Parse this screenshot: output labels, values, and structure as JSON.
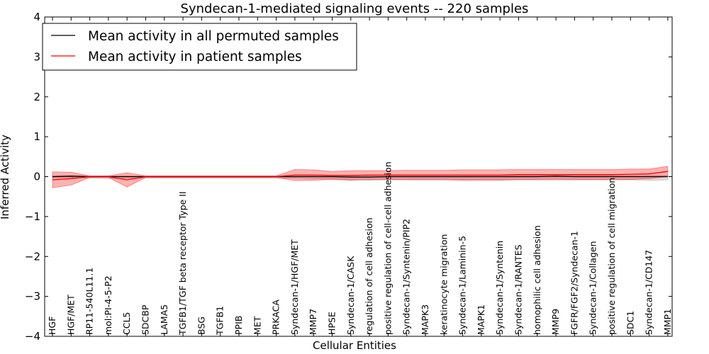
{
  "chart_data": {
    "type": "line",
    "title": "Syndecan-1-mediated signaling events -- 220 samples",
    "xlabel": "Cellular Entities",
    "ylabel": "Inferred Activity",
    "ylim": [
      -4,
      4
    ],
    "yticks": [
      "−4",
      "−3",
      "−2",
      "−1",
      "0",
      "1",
      "2",
      "3",
      "4"
    ],
    "grid": false,
    "legend_position": "top-left",
    "categories": [
      "HGF",
      "HGF/MET",
      "RP11-540L11.1",
      "mol:PI-4-5-P2",
      "CCL5",
      "SDCBP",
      "LAMA5",
      "TGFB1/TGF beta receptor Type II",
      "BSG",
      "TGFB1",
      "PPIB",
      "MET",
      "PRKACA",
      "Syndecan-1/HGF/MET",
      "MMP7",
      "HPSE",
      "Syndecan-1/CASK",
      "regulation of cell adhesion",
      "positive regulation of cell-cell adhesion",
      "Syndecan-1/Syntenin/PIP2",
      "MAPK3",
      "keratinocyte migration",
      "Syndecan-1/Laminin-5",
      "MAPK1",
      "Syndecan-1/Syntenin",
      "Syndecan-1/RANTES",
      "homophilic cell adhesion",
      "MMP9",
      "FGFR/FGF2/Syndecan-1",
      "Syndecan-1/Collagen",
      "positive regulation of cell migration",
      "SDC1",
      "Syndecan-1/CD147",
      "MMP1"
    ],
    "series": [
      {
        "name": "Mean activity in all permuted samples",
        "color": "#000000",
        "values": [
          0.0,
          0.01,
          0.0,
          0.0,
          0.0,
          0.0,
          0.0,
          0.0,
          0.0,
          0.0,
          0.0,
          0.0,
          0.0,
          0.0,
          0.0,
          0.0,
          -0.01,
          -0.01,
          0.0,
          0.0,
          0.0,
          0.0,
          0.0,
          0.0,
          0.0,
          0.0,
          0.0,
          0.01,
          0.0,
          0.0,
          0.0,
          0.0,
          0.0,
          0.0
        ],
        "band_upper": [
          0.02,
          0.03,
          0.02,
          0.02,
          0.02,
          0.02,
          0.02,
          0.02,
          0.02,
          0.02,
          0.02,
          0.02,
          0.02,
          0.03,
          0.03,
          0.03,
          0.03,
          0.03,
          0.03,
          0.03,
          0.03,
          0.03,
          0.03,
          0.03,
          0.03,
          0.03,
          0.03,
          0.04,
          0.03,
          0.03,
          0.03,
          0.03,
          0.03,
          0.03
        ],
        "band_lower": [
          -0.03,
          -0.02,
          -0.04,
          -0.05,
          -0.04,
          -0.04,
          -0.04,
          -0.04,
          -0.04,
          -0.04,
          -0.04,
          -0.04,
          -0.04,
          -0.04,
          -0.05,
          -0.06,
          -0.08,
          -0.09,
          -0.08,
          -0.08,
          -0.08,
          -0.08,
          -0.08,
          -0.07,
          -0.07,
          -0.07,
          -0.07,
          -0.06,
          -0.07,
          -0.07,
          -0.08,
          -0.08,
          -0.09,
          -0.08
        ]
      },
      {
        "name": "Mean activity in patient samples",
        "color": "#ff0000",
        "values": [
          -0.08,
          -0.05,
          0.0,
          0.0,
          -0.08,
          0.0,
          0.0,
          0.0,
          0.0,
          0.0,
          0.0,
          0.0,
          0.0,
          0.04,
          0.04,
          0.03,
          0.03,
          0.04,
          0.04,
          0.04,
          0.04,
          0.04,
          0.04,
          0.04,
          0.04,
          0.05,
          0.05,
          0.05,
          0.05,
          0.05,
          0.05,
          0.06,
          0.07,
          0.13
        ],
        "band_upper": [
          0.12,
          0.11,
          0.02,
          0.02,
          0.1,
          0.02,
          0.02,
          0.02,
          0.02,
          0.02,
          0.02,
          0.02,
          0.02,
          0.18,
          0.17,
          0.13,
          0.15,
          0.15,
          0.15,
          0.16,
          0.16,
          0.16,
          0.17,
          0.17,
          0.17,
          0.18,
          0.18,
          0.18,
          0.18,
          0.18,
          0.18,
          0.19,
          0.19,
          0.26
        ]
      }
    ]
  }
}
